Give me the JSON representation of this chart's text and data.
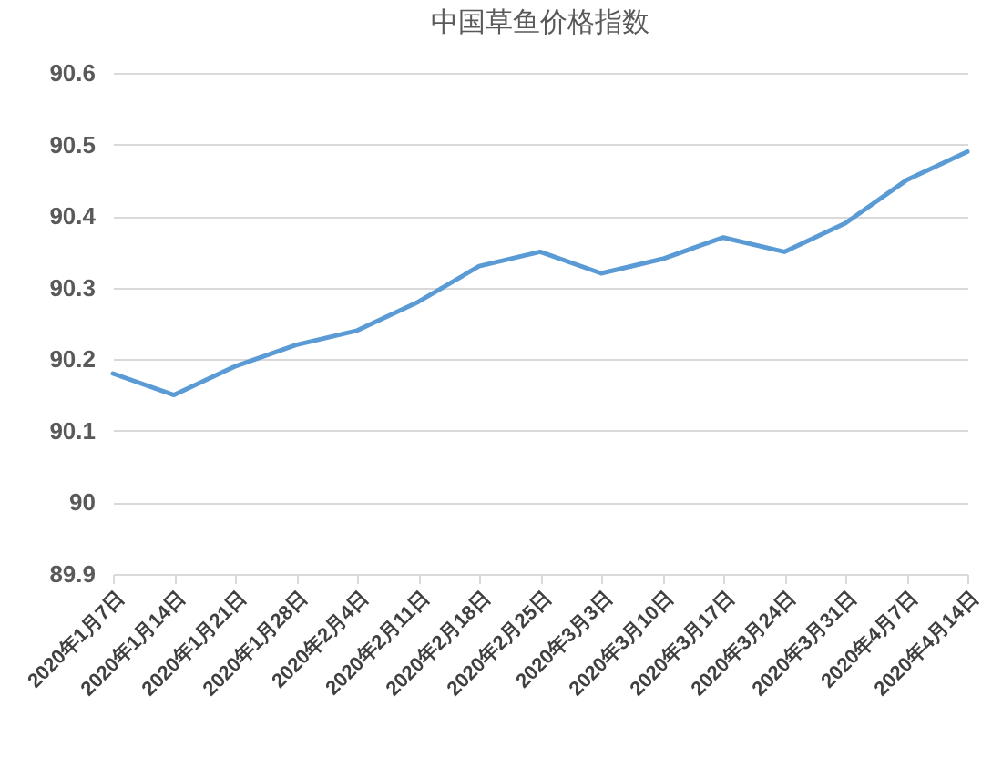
{
  "chart_data": {
    "type": "line",
    "title": "中国草鱼价格指数",
    "categories": [
      "2020年1月7日",
      "2020年1月14日",
      "2020年1月21日",
      "2020年1月28日",
      "2020年2月4日",
      "2020年2月11日",
      "2020年2月18日",
      "2020年2月25日",
      "2020年3月3日",
      "2020年3月10日",
      "2020年3月17日",
      "2020年3月24日",
      "2020年3月31日",
      "2020年4月7日",
      "2020年4月14日"
    ],
    "series": [
      {
        "color": "#5b9bd5",
        "values": [
          90.18,
          90.15,
          90.19,
          90.22,
          90.24,
          90.28,
          90.33,
          90.35,
          90.32,
          90.34,
          90.37,
          90.35,
          90.39,
          90.45,
          90.49
        ]
      }
    ],
    "ylim": [
      89.9,
      90.6
    ],
    "yticks": [
      89.9,
      90,
      90.1,
      90.2,
      90.3,
      90.4,
      90.5,
      90.6
    ],
    "grid": "y",
    "legend": false,
    "marker": "none",
    "line_style": "solid"
  }
}
